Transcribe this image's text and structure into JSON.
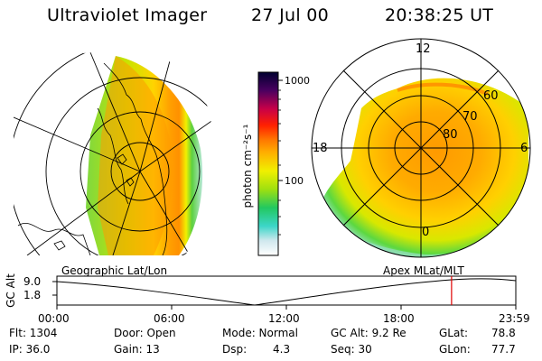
{
  "header": {
    "instrument": "Ultraviolet Imager",
    "date": "27 Jul 00",
    "time": "20:38:25 UT"
  },
  "colorbar": {
    "unit_label": "photon cm⁻²s⁻¹",
    "tick_labels": [
      "1000",
      "100"
    ]
  },
  "left_panel": {
    "caption": "Geographic Lat/Lon"
  },
  "right_panel": {
    "caption": "Apex MLat/MLT",
    "mlt_labels": {
      "top": "12",
      "left": "18",
      "right": "6",
      "bottom": "0"
    },
    "lat_labels": [
      "60",
      "70",
      "80"
    ]
  },
  "altitude_strip": {
    "ylabel": "GC Alt",
    "ytick_top": "9.0",
    "ytick_bottom": "1.8",
    "time_ticks": [
      "00:00",
      "06:00",
      "12:00",
      "18:00",
      "23:59"
    ],
    "current_time_fraction": 0.86,
    "marker_color": "#e00000"
  },
  "status": {
    "flt": "Flt: 1304",
    "ip": "IP: 36.0",
    "door": "Door: Open",
    "gain": "Gain: 13",
    "mode": "Mode: Normal",
    "dsp_label": "Dsp:",
    "dsp_value": "4.3",
    "gc_alt": "GC Alt: 9.2 Re",
    "seq": "Seq: 30",
    "glat_label": "GLat:",
    "glat_value": "78.8",
    "glon_label": "GLon:",
    "glon_value": "77.7"
  }
}
